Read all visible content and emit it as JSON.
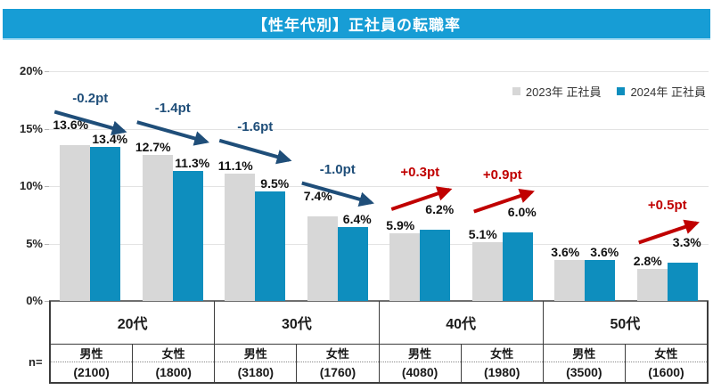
{
  "title": "【性年代別】正社員の転職率",
  "legend": [
    {
      "label": "2023年 正社員",
      "color": "#d7d7d7"
    },
    {
      "label": "2024年 正社員",
      "color": "#0e8ebe"
    }
  ],
  "n_prefix": "n=",
  "palette": {
    "banner": "#179dd5",
    "bar_2023": "#d7d7d7",
    "bar_2024": "#0e8ebe",
    "negative": "#1f4e79",
    "positive": "#c00000"
  },
  "chart_data": {
    "type": "bar",
    "title": "【性年代別】正社員の転職率",
    "ylim": [
      0,
      20
    ],
    "yticks": [
      "0%",
      "5%",
      "10%",
      "15%",
      "20%"
    ],
    "grid": true,
    "legend_position": "top-right",
    "series_names": [
      "2023年 正社員",
      "2024年 正社員"
    ],
    "groups": [
      {
        "age": "20代",
        "gender": "男性",
        "n_label": "(2100)",
        "v2023": 13.6,
        "v2024": 13.4,
        "label2023": "13.6%",
        "label2024": "13.4%",
        "annotation": "-0.2pt"
      },
      {
        "age": "20代",
        "gender": "女性",
        "n_label": "(1800)",
        "v2023": 12.7,
        "v2024": 11.3,
        "label2023": "12.7%",
        "label2024": "11.3%",
        "annotation": "-1.4pt"
      },
      {
        "age": "30代",
        "gender": "男性",
        "n_label": "(3180)",
        "v2023": 11.1,
        "v2024": 9.5,
        "label2023": "11.1%",
        "label2024": "9.5%",
        "annotation": "-1.6pt"
      },
      {
        "age": "30代",
        "gender": "女性",
        "n_label": "(1760)",
        "v2023": 7.4,
        "v2024": 6.4,
        "label2023": "7.4%",
        "label2024": "6.4%",
        "annotation": "-1.0pt"
      },
      {
        "age": "40代",
        "gender": "男性",
        "n_label": "(4080)",
        "v2023": 5.9,
        "v2024": 6.2,
        "label2023": "5.9%",
        "label2024": "6.2%",
        "annotation": "+0.3pt"
      },
      {
        "age": "40代",
        "gender": "女性",
        "n_label": "(1980)",
        "v2023": 5.1,
        "v2024": 6.0,
        "label2023": "5.1%",
        "label2024": "6.0%",
        "annotation": "+0.9pt"
      },
      {
        "age": "50代",
        "gender": "男性",
        "n_label": "(3500)",
        "v2023": 3.6,
        "v2024": 3.6,
        "label2023": "3.6%",
        "label2024": "3.6%",
        "annotation": null
      },
      {
        "age": "50代",
        "gender": "女性",
        "n_label": "(1600)",
        "v2023": 2.8,
        "v2024": 3.3,
        "label2023": "2.8%",
        "label2024": "3.3%",
        "annotation": "+0.5pt"
      }
    ]
  }
}
